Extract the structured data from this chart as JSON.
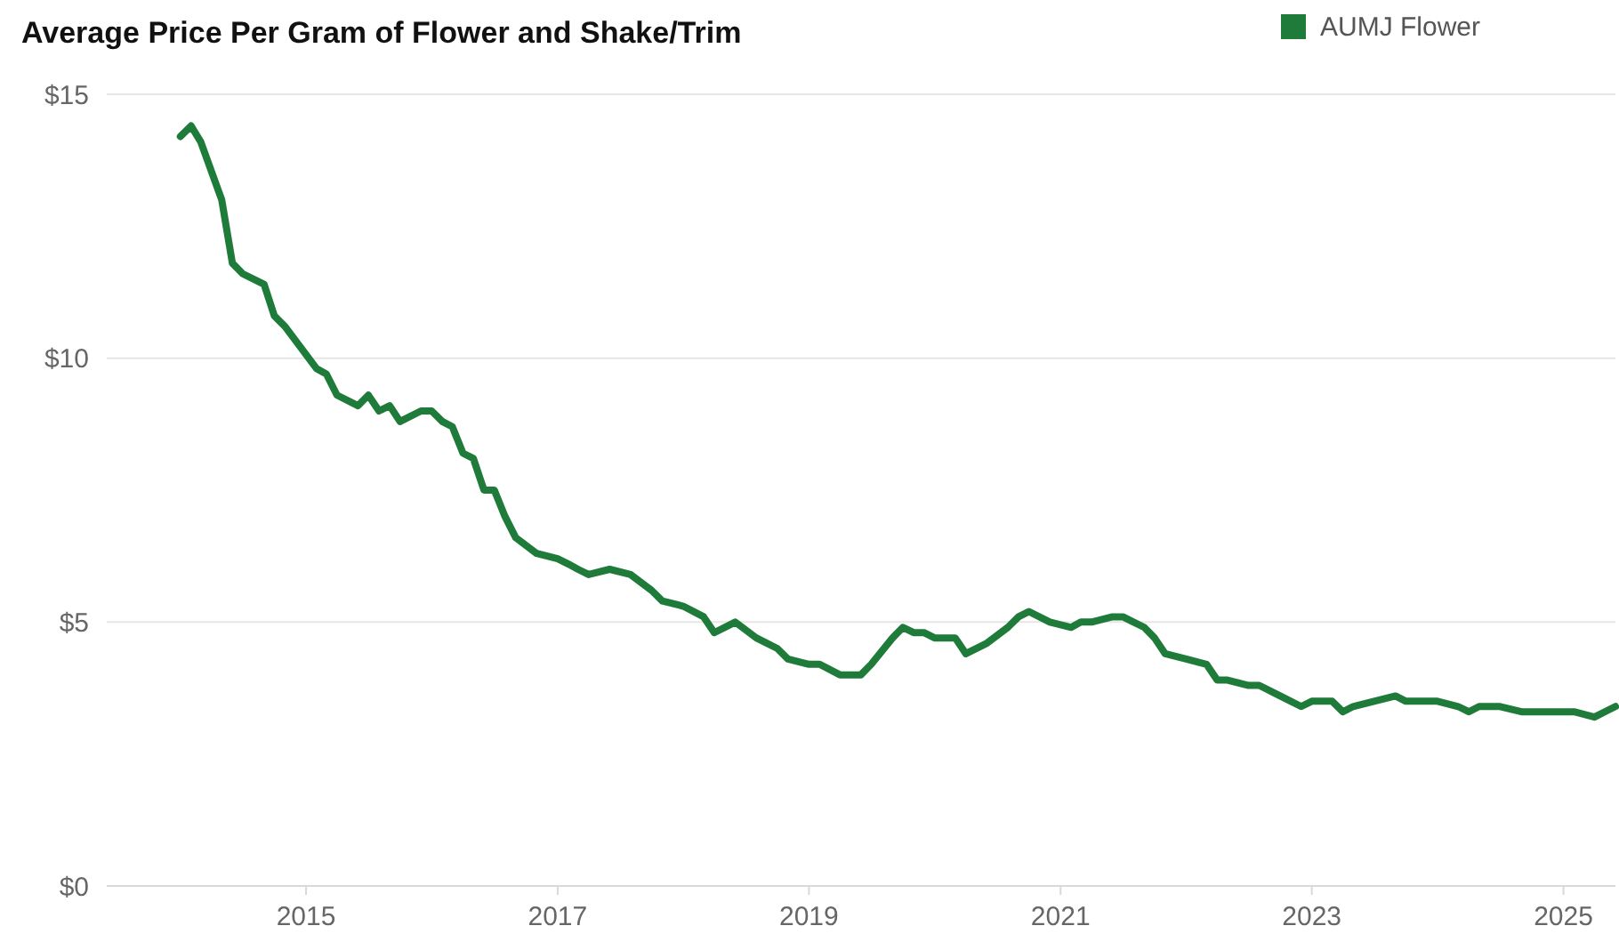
{
  "chart_data": {
    "type": "line",
    "title": "Average Price Per Gram of Flower and Shake/Trim",
    "x": [
      "2014-01",
      "2014-02",
      "2014-03",
      "2014-05",
      "2014-06",
      "2014-07",
      "2014-09",
      "2014-10",
      "2014-11",
      "2015-02",
      "2015-03",
      "2015-04",
      "2015-06",
      "2015-07",
      "2015-08",
      "2015-09",
      "2015-10",
      "2015-12",
      "2016-01",
      "2016-02",
      "2016-03",
      "2016-04",
      "2016-05",
      "2016-06",
      "2016-07",
      "2016-08",
      "2016-09",
      "2016-11",
      "2017-01",
      "2017-02",
      "2017-03",
      "2017-04",
      "2017-06",
      "2017-08",
      "2017-10",
      "2017-11",
      "2018-01",
      "2018-03",
      "2018-04",
      "2018-06",
      "2018-08",
      "2018-10",
      "2018-11",
      "2019-01",
      "2019-02",
      "2019-04",
      "2019-06",
      "2019-07",
      "2019-09",
      "2019-10",
      "2019-11",
      "2019-12",
      "2020-01",
      "2020-03",
      "2020-04",
      "2020-06",
      "2020-08",
      "2020-09",
      "2020-10",
      "2020-12",
      "2021-02",
      "2021-03",
      "2021-04",
      "2021-06",
      "2021-07",
      "2021-09",
      "2021-10",
      "2021-11",
      "2022-01",
      "2022-03",
      "2022-04",
      "2022-05",
      "2022-07",
      "2022-08",
      "2022-10",
      "2022-12",
      "2023-01",
      "2023-03",
      "2023-04",
      "2023-05",
      "2023-07",
      "2023-09",
      "2023-10",
      "2023-12",
      "2024-01",
      "2024-03",
      "2024-04",
      "2024-05",
      "2024-07",
      "2024-09",
      "2024-11",
      "2025-01",
      "2025-02",
      "2025-04",
      "2025-05",
      "2025-06"
    ],
    "series": [
      {
        "name": "AUMJ Flower",
        "color": "#1e7b3a",
        "values": [
          14.2,
          14.4,
          14.1,
          13.0,
          11.8,
          11.6,
          11.4,
          10.8,
          10.6,
          9.8,
          9.7,
          9.3,
          9.1,
          9.3,
          9.0,
          9.1,
          8.8,
          9.0,
          9.0,
          8.8,
          8.7,
          8.2,
          8.1,
          7.5,
          7.5,
          7.0,
          6.6,
          6.3,
          6.2,
          6.1,
          6.0,
          5.9,
          6.0,
          5.9,
          5.6,
          5.4,
          5.3,
          5.1,
          4.8,
          5.0,
          4.7,
          4.5,
          4.3,
          4.2,
          4.2,
          4.0,
          4.0,
          4.2,
          4.7,
          4.9,
          4.8,
          4.8,
          4.7,
          4.7,
          4.4,
          4.6,
          4.9,
          5.1,
          5.2,
          5.0,
          4.9,
          5.0,
          5.0,
          5.1,
          5.1,
          4.9,
          4.7,
          4.4,
          4.3,
          4.2,
          3.9,
          3.9,
          3.8,
          3.8,
          3.6,
          3.4,
          3.5,
          3.5,
          3.3,
          3.4,
          3.5,
          3.6,
          3.5,
          3.5,
          3.5,
          3.4,
          3.3,
          3.4,
          3.4,
          3.3,
          3.3,
          3.3,
          3.3,
          3.2,
          3.3,
          3.4
        ]
      }
    ],
    "xlim": [
      "2013-06",
      "2025-06"
    ],
    "xticks": [
      {
        "value": "2015-01",
        "label": "2015"
      },
      {
        "value": "2017-01",
        "label": "2017"
      },
      {
        "value": "2019-01",
        "label": "2019"
      },
      {
        "value": "2021-01",
        "label": "2021"
      },
      {
        "value": "2023-01",
        "label": "2023"
      },
      {
        "value": "2025-01",
        "label": "2025"
      }
    ],
    "ylim": [
      0,
      15
    ],
    "yticks": [
      {
        "value": 0,
        "label": "$0"
      },
      {
        "value": 5,
        "label": "$5"
      },
      {
        "value": 10,
        "label": "$10"
      },
      {
        "value": 15,
        "label": "$15"
      }
    ],
    "grid": "y",
    "legend": "top right",
    "line_style": "solid",
    "marker": "none"
  }
}
